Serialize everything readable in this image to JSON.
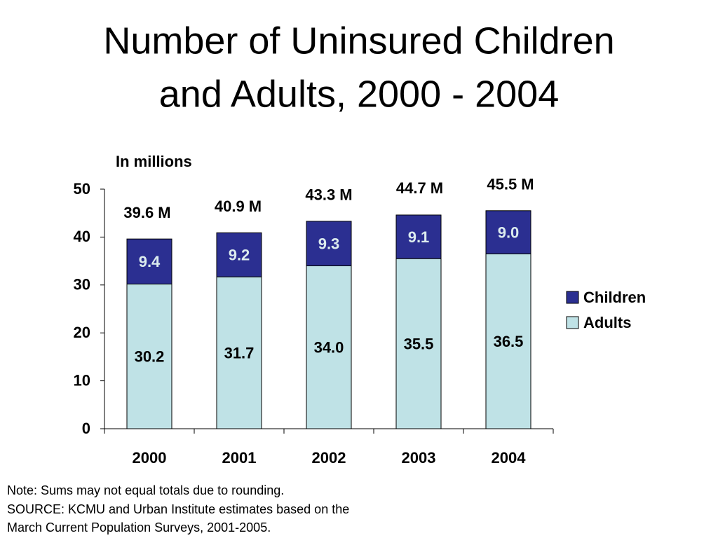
{
  "chart_data": {
    "type": "stacked_bar",
    "title": [
      "Number of Uninsured Children",
      "and Adults, 2000 - 2004"
    ],
    "y_axis_label": "In millions",
    "categories": [
      "2000",
      "2001",
      "2002",
      "2003",
      "2004"
    ],
    "series": [
      {
        "name": "Adults",
        "color": "#bfe2e6",
        "values": [
          30.2,
          31.7,
          34.0,
          35.5,
          36.5
        ],
        "value_labels": [
          "30.2",
          "31.7",
          "34.0",
          "35.5",
          "36.5"
        ],
        "label_color": "#000000"
      },
      {
        "name": "Children",
        "color": "#2b2f91",
        "values": [
          9.4,
          9.2,
          9.3,
          9.1,
          9.0
        ],
        "value_labels": [
          "9.4",
          "9.2",
          "9.3",
          "9.1",
          "9.0"
        ],
        "label_color": "#dcecee"
      }
    ],
    "totals": {
      "values": [
        39.6,
        40.9,
        43.3,
        44.7,
        45.5
      ],
      "value_labels": [
        "39.6 M",
        "40.9 M",
        "43.3 M",
        "44.7 M",
        "45.5 M"
      ]
    },
    "ylim": [
      0,
      50
    ],
    "yticks": [
      0,
      10,
      20,
      30,
      40,
      50
    ],
    "grid": false,
    "legend": "right",
    "notes": [
      "Note: Sums may not equal totals due to rounding.",
      "SOURCE: KCMU and Urban Institute estimates based on the",
      "March Current Population Surveys, 2001-2005."
    ]
  }
}
